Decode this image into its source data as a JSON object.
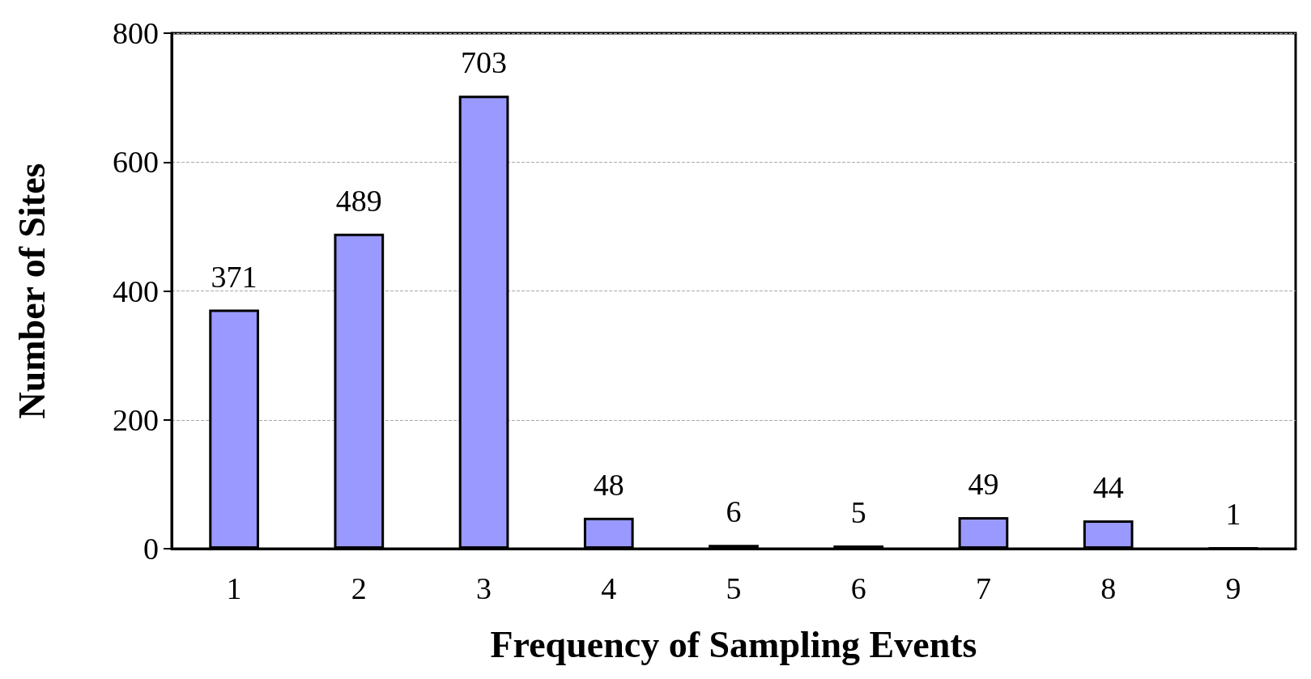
{
  "chart_data": {
    "type": "bar",
    "xlabel": "Frequency of Sampling Events",
    "ylabel": "Number of Sites",
    "categories": [
      "1",
      "2",
      "3",
      "4",
      "5",
      "6",
      "7",
      "8",
      "9"
    ],
    "values": [
      371,
      489,
      703,
      48,
      6,
      5,
      49,
      44,
      1
    ],
    "color": "#9999ff",
    "ylim": [
      0,
      800
    ],
    "yticks": [
      0,
      200,
      400,
      600,
      800
    ],
    "grid": "y",
    "data_labels": true
  }
}
